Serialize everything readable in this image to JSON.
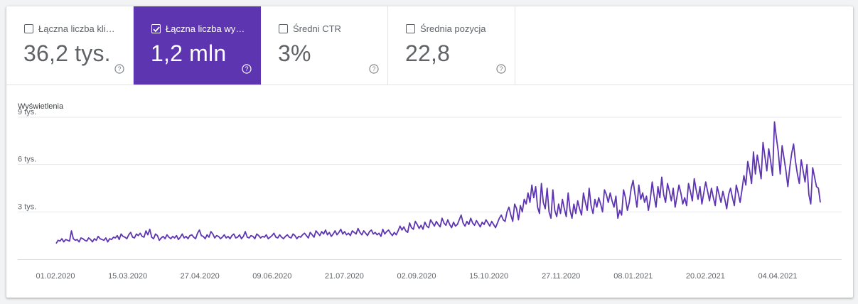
{
  "metrics": [
    {
      "label": "Łączna liczba kliknięć",
      "value": "36,2 tys.",
      "checked": false
    },
    {
      "label": "Łączna liczba wyświetleń",
      "value": "1,2 mln",
      "checked": true
    },
    {
      "label": "Średni CTR",
      "value": "3%",
      "checked": false
    },
    {
      "label": "Średnia pozycja",
      "value": "22,8",
      "checked": false
    }
  ],
  "colors": {
    "accent": "#5e35b1",
    "line": "#5e35b1"
  },
  "chart_data": {
    "type": "line",
    "ylabel": "Wyświetlenia",
    "ylim": [
      0,
      9000
    ],
    "yticks": [
      {
        "value": 3000,
        "label": "3 tys."
      },
      {
        "value": 6000,
        "label": "6 tys."
      },
      {
        "value": 9000,
        "label": "9 tys."
      }
    ],
    "xticks": [
      "01.02.2020",
      "15.03.2020",
      "27.04.2020",
      "09.06.2020",
      "21.07.2020",
      "02.09.2020",
      "15.10.2020",
      "27.11.2020",
      "08.01.2021",
      "20.02.2021",
      "04.04.2021"
    ],
    "x_start": "01.02.2020",
    "x_end": "28.04.2021",
    "series": [
      {
        "values": [
          1000,
          1200,
          1150,
          1300,
          1100,
          1250,
          1200,
          1150,
          1800,
          1300,
          1200,
          1250,
          1100,
          1350,
          1300,
          1200,
          1150,
          1350,
          1250,
          1100,
          1300,
          1200,
          1450,
          1300,
          1250,
          1200,
          1350,
          1100,
          1300,
          1250,
          1400,
          1350,
          1500,
          1250,
          1600,
          1450,
          1400,
          1300,
          1550,
          1700,
          1400,
          1350,
          1600,
          1500,
          1650,
          1450,
          1400,
          1800,
          1550,
          1900,
          1400,
          1300,
          1600,
          1500,
          1200,
          1350,
          1450,
          1300,
          1550,
          1400,
          1300,
          1450,
          1350,
          1500,
          1250,
          1400,
          1600,
          1350,
          1450,
          1300,
          1500,
          1550,
          1400,
          1300,
          1650,
          1850,
          1500,
          1450,
          1300,
          1550,
          1400,
          1750,
          1600,
          1350,
          1500,
          1450,
          1300,
          1400,
          1550,
          1350,
          1450,
          1300,
          1500,
          1600,
          1350,
          1400,
          1550,
          1300,
          1450,
          1750,
          1400,
          1350,
          1500,
          1450,
          1300,
          1600,
          1500,
          1350,
          1450,
          1400,
          1550,
          1300,
          1400,
          1500,
          1650,
          1400,
          1350,
          1550,
          1400,
          1300,
          1450,
          1550,
          1400,
          1350,
          1600,
          1500,
          1300,
          1450,
          1400,
          1550,
          1650,
          1500,
          1350,
          1700,
          1550,
          1400,
          1800,
          1650,
          1500,
          1750,
          1600,
          1850,
          1550,
          1700,
          1450,
          1600,
          1800,
          1550,
          1700,
          1900,
          1600,
          1750,
          1550,
          1650,
          1500,
          1800,
          1700,
          1600,
          1950,
          1700,
          1550,
          1800,
          1650,
          1500,
          1750,
          1850,
          1600,
          1700,
          1550,
          1650,
          1450,
          1900,
          1600,
          1750,
          1850,
          1650,
          1500,
          1700,
          1550,
          1800,
          2100,
          1850,
          2050,
          1800,
          1700,
          2300,
          2000,
          1900,
          2400,
          2200,
          1950,
          2150,
          1900,
          2350,
          2100,
          2000,
          2500,
          2300,
          2100,
          2400,
          2200,
          2050,
          2600,
          2300,
          2150,
          2500,
          2200,
          2000,
          2350,
          2100,
          2200,
          2500,
          2800,
          2300,
          2100,
          2400,
          2200,
          2600,
          2300,
          2150,
          2450,
          2250,
          2050,
          2350,
          2200,
          2500,
          2300,
          2100,
          2400,
          2200,
          2000,
          2300,
          2600,
          2800,
          2500,
          2400,
          3000,
          3300,
          2800,
          2400,
          3500,
          3200,
          2500,
          3400,
          3000,
          3800,
          3500,
          4200,
          3600,
          4700,
          3900,
          4600,
          3300,
          2900,
          4800,
          3600,
          3200,
          4500,
          3000,
          2600,
          4400,
          3100,
          2700,
          3500,
          2900,
          3800,
          3200,
          2700,
          4200,
          3100,
          2600,
          3500,
          2900,
          3700,
          3200,
          2800,
          4200,
          3600,
          3100,
          4500,
          3400,
          2900,
          3800,
          3300,
          3900,
          3500,
          3000,
          4400,
          4100,
          3600,
          4200,
          3700,
          3300,
          4000,
          2600,
          3100,
          2800,
          4400,
          3900,
          3100,
          3600,
          4500,
          5000,
          4100,
          3300,
          4700,
          3800,
          4200,
          3600,
          4000,
          3100,
          3800,
          4900,
          4000,
          3300,
          4600,
          3900,
          5200,
          4100,
          3600,
          4800,
          4300,
          3700,
          4500,
          3300,
          4000,
          4700,
          4200,
          3500,
          3900,
          3400,
          4800,
          4300,
          3700,
          5100,
          4400,
          3800,
          4600,
          3500,
          4200,
          4900,
          4300,
          3700,
          4500,
          3900,
          3400,
          4600,
          4100,
          3600,
          4300,
          3800,
          3200,
          4100,
          4500,
          3900,
          3400,
          4700,
          4200,
          3600,
          4400,
          5300,
          4700,
          6200,
          5600,
          4800,
          6800,
          5400,
          6600,
          5900,
          5100,
          7400,
          6500,
          5600,
          7000,
          6200,
          5300,
          8700,
          7700,
          6800,
          5400,
          7200,
          6400,
          5600,
          4600,
          5800,
          6700,
          7300,
          6200,
          5400,
          4800,
          6300,
          5600,
          4900,
          6000,
          4100,
          3500,
          5800,
          5200,
          4600,
          4500,
          3600
        ]
      }
    ]
  }
}
